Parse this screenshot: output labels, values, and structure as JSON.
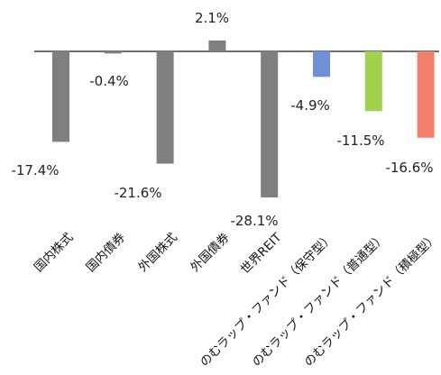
{
  "chart_data": {
    "type": "bar",
    "categories": [
      "国内株式",
      "国内債券",
      "外国株式",
      "外国債券",
      "世界REIT",
      "のむラップ・ファンド（保守型）",
      "のむラップ・ファンド（普通型）",
      "のむラップ・ファンド（積極型）"
    ],
    "values": [
      -17.4,
      -0.4,
      -21.6,
      2.1,
      -28.1,
      -4.9,
      -11.5,
      -16.6
    ],
    "data_labels": [
      "-17.4%",
      "-0.4%",
      "-21.6%",
      "2.1%",
      "-28.1%",
      "-4.9%",
      "-11.5%",
      "-16.6%"
    ],
    "colors": [
      "#7f7f7f",
      "#7f7f7f",
      "#7f7f7f",
      "#7f7f7f",
      "#7f7f7f",
      "#6f8fd6",
      "#a3d14f",
      "#f0806c"
    ],
    "axis_color": "#404040",
    "title": "",
    "xlabel": "",
    "ylabel": "",
    "ylim": [
      -28.1,
      2.1
    ],
    "grid": false,
    "legend": "none"
  }
}
